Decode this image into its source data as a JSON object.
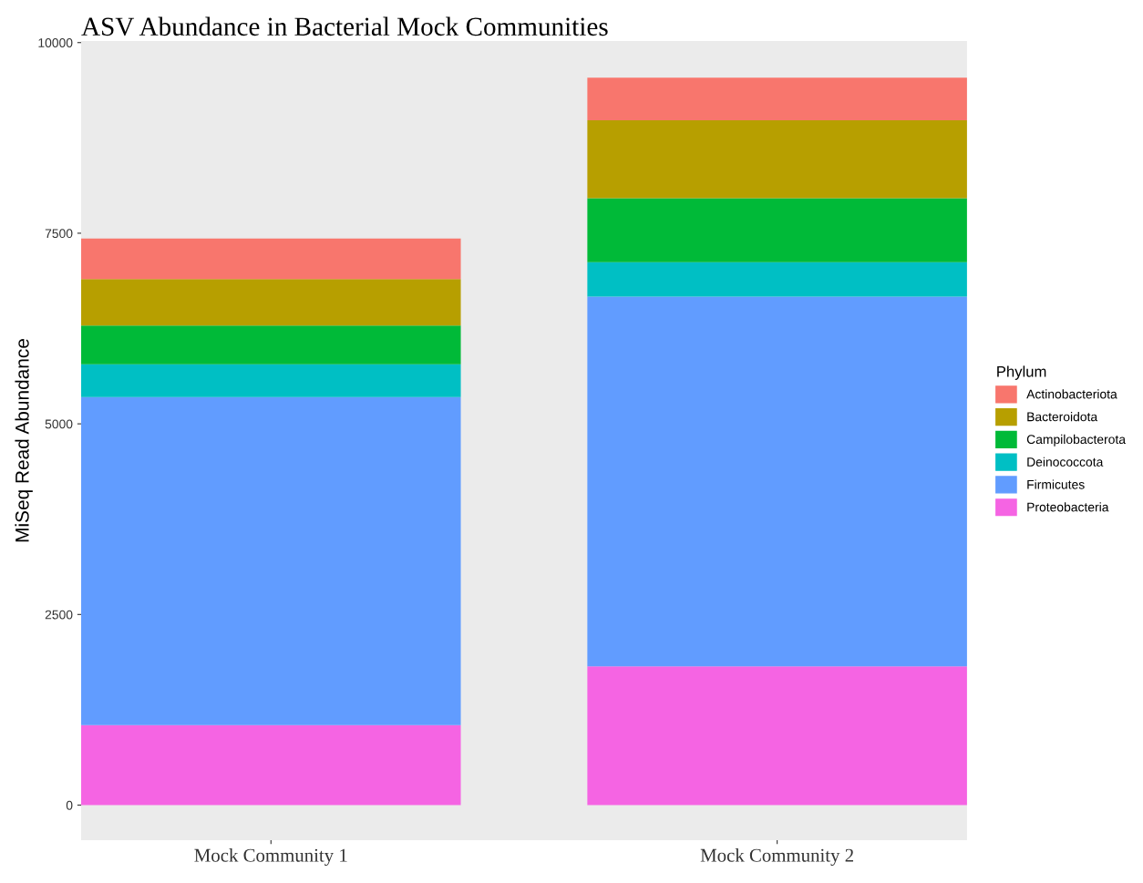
{
  "chart_data": {
    "type": "bar",
    "title": "ASV Abundance in Bacterial Mock Communities",
    "ylabel": "MiSeq Read Abundance",
    "legend_title": "Phylum",
    "categories": [
      "Mock Community 1",
      "Mock Community 2"
    ],
    "stacked": true,
    "series": [
      {
        "name": "Proteobacteria",
        "color": "#f564e3",
        "values": [
          1050,
          1820
        ]
      },
      {
        "name": "Firmicutes",
        "color": "#619cff",
        "values": [
          4300,
          4850
        ]
      },
      {
        "name": "Deinococcota",
        "color": "#00bfc4",
        "values": [
          430,
          450
        ]
      },
      {
        "name": "Campilobacterota",
        "color": "#00ba38",
        "values": [
          510,
          840
        ]
      },
      {
        "name": "Bacteroidota",
        "color": "#b79f00",
        "values": [
          610,
          1020
        ]
      },
      {
        "name": "Actinobacteriota",
        "color": "#f8766d",
        "values": [
          530,
          560
        ]
      }
    ],
    "ylim": [
      -460,
      10020
    ],
    "yticks": [
      0,
      2500,
      5000,
      7500,
      10000
    ],
    "grid": false,
    "legend": "right"
  }
}
